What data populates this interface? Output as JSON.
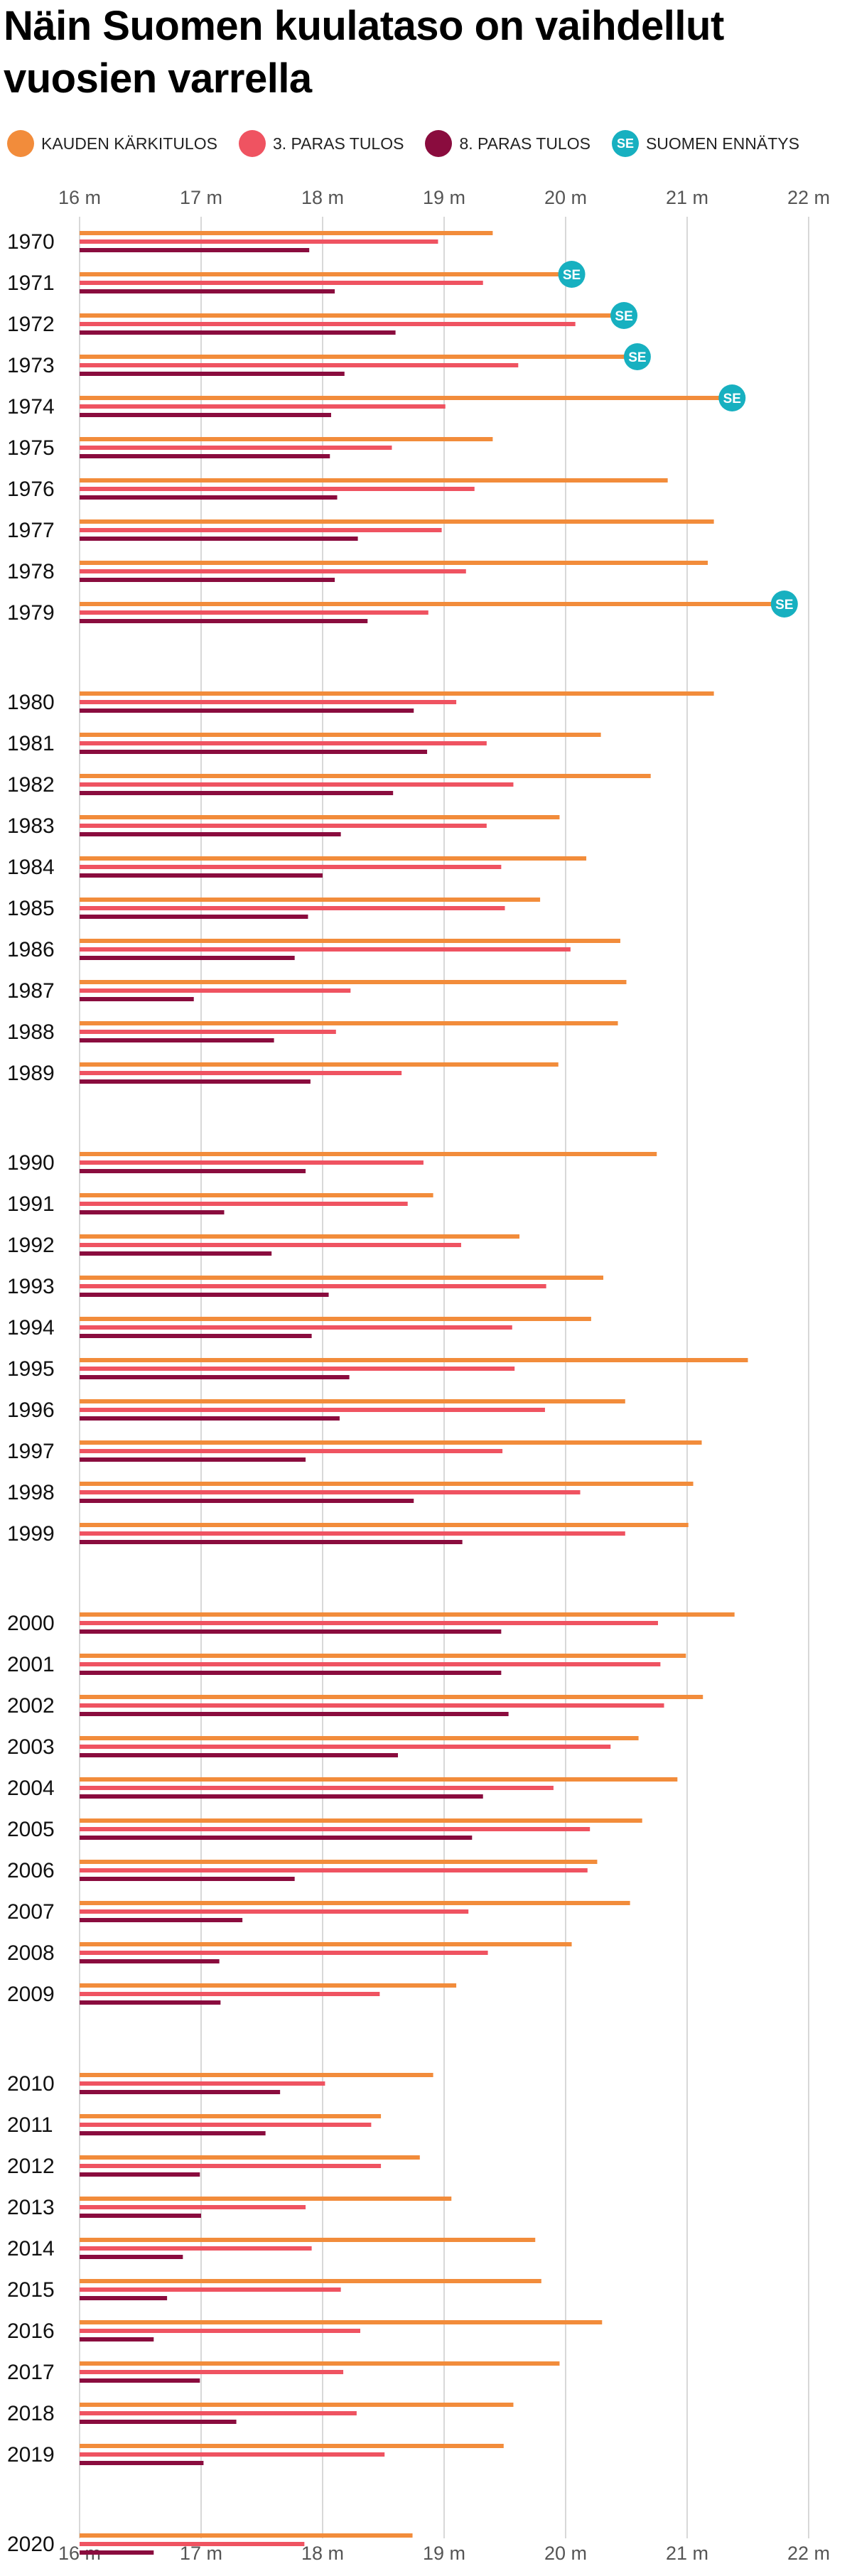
{
  "title": "Näin Suomen kuulataso on vaihdellut vuosien varrella",
  "legend": {
    "best": "KAUDEN KÄRKITULOS",
    "third": "3. PARAS TULOS",
    "eighth": "8. PARAS TULOS",
    "record": "SUOMEN ENNÄTYS",
    "record_badge": "SE"
  },
  "colors": {
    "best": "#f28c3b",
    "third": "#ef5361",
    "eighth": "#8a0c3e",
    "record": "#17b0c0",
    "grid": "#cccccc"
  },
  "chart_data": {
    "type": "bar",
    "orientation": "horizontal",
    "unit": "m",
    "xlim": [
      16,
      22
    ],
    "ticks": [
      "16 m",
      "17 m",
      "18 m",
      "19 m",
      "20 m",
      "21 m",
      "22 m"
    ],
    "grid": "vertical",
    "legend_position": "top",
    "categories": [
      "1970",
      "1971",
      "1972",
      "1973",
      "1974",
      "1975",
      "1976",
      "1977",
      "1978",
      "1979",
      "1980",
      "1981",
      "1982",
      "1983",
      "1984",
      "1985",
      "1986",
      "1987",
      "1988",
      "1989",
      "1990",
      "1991",
      "1992",
      "1993",
      "1994",
      "1995",
      "1996",
      "1997",
      "1998",
      "1999",
      "2000",
      "2001",
      "2002",
      "2003",
      "2004",
      "2005",
      "2006",
      "2007",
      "2008",
      "2009",
      "2010",
      "2011",
      "2012",
      "2013",
      "2014",
      "2015",
      "2016",
      "2017",
      "2018",
      "2019",
      "2020"
    ],
    "series": [
      {
        "name": "KAUDEN KÄRKITULOS",
        "values": [
          19.4,
          20.05,
          20.48,
          20.59,
          21.37,
          19.4,
          20.84,
          21.22,
          21.17,
          21.8,
          21.22,
          20.29,
          20.7,
          19.95,
          20.17,
          19.79,
          20.45,
          20.5,
          20.43,
          19.94,
          20.75,
          18.91,
          19.62,
          20.31,
          20.21,
          21.5,
          20.49,
          21.12,
          21.05,
          21.01,
          21.39,
          20.99,
          21.13,
          20.6,
          20.92,
          20.63,
          20.26,
          20.53,
          20.05,
          19.1,
          18.91,
          18.48,
          18.8,
          19.06,
          19.75,
          19.8,
          20.3,
          19.95,
          19.57,
          19.49,
          18.74
        ]
      },
      {
        "name": "3. PARAS TULOS",
        "values": [
          18.95,
          19.32,
          20.08,
          19.61,
          19.01,
          18.57,
          19.25,
          18.98,
          19.18,
          18.87,
          19.1,
          19.35,
          19.57,
          19.35,
          19.47,
          19.5,
          20.04,
          18.23,
          18.11,
          18.65,
          18.83,
          18.7,
          19.14,
          19.84,
          19.56,
          19.58,
          19.83,
          19.48,
          20.12,
          20.49,
          20.76,
          20.78,
          20.81,
          20.37,
          19.9,
          20.2,
          20.18,
          19.2,
          19.36,
          18.47,
          18.02,
          18.4,
          18.48,
          17.86,
          17.91,
          18.15,
          18.31,
          18.17,
          18.28,
          18.51,
          17.85
        ]
      },
      {
        "name": "8. PARAS TULOS",
        "values": [
          17.89,
          18.1,
          18.6,
          18.18,
          18.07,
          18.06,
          18.12,
          18.29,
          18.1,
          18.37,
          18.75,
          18.86,
          18.58,
          18.15,
          18.0,
          17.88,
          17.77,
          16.94,
          17.6,
          17.9,
          17.86,
          17.19,
          17.58,
          18.05,
          17.91,
          18.22,
          18.14,
          17.86,
          18.75,
          19.15,
          19.47,
          19.47,
          19.53,
          18.62,
          19.32,
          19.23,
          17.77,
          17.34,
          17.15,
          17.16,
          17.65,
          17.53,
          16.99,
          17.0,
          16.85,
          16.72,
          16.61,
          16.99,
          17.29,
          17.02,
          16.61
        ]
      }
    ],
    "records": [
      {
        "year": "1971",
        "value": 20.05,
        "label": "SE"
      },
      {
        "year": "1972",
        "value": 20.48,
        "label": "SE"
      },
      {
        "year": "1973",
        "value": 20.59,
        "label": "SE"
      },
      {
        "year": "1974",
        "value": 21.37,
        "label": "SE"
      },
      {
        "year": "1979",
        "value": 21.8,
        "label": "SE"
      }
    ]
  }
}
